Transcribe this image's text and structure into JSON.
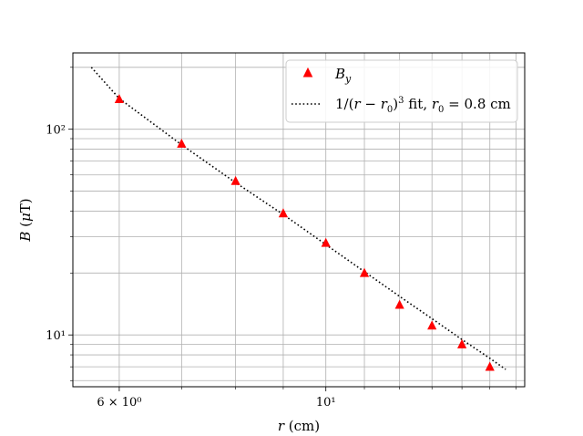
{
  "chart_data": {
    "type": "scatter",
    "title": "",
    "xlabel": "r (cm)",
    "ylabel": "B (μT)",
    "xscale": "log",
    "yscale": "log",
    "xlim": [
      5.35,
      16.35
    ],
    "ylim": [
      5.6,
      235
    ],
    "grid": "both-major-and-minor",
    "legend_position": "top-right",
    "x_major_ticks": [
      {
        "value": 6,
        "label": "6 × 10⁰"
      },
      {
        "value": 10,
        "label": "10¹"
      }
    ],
    "x_minor_ticks": [
      7,
      8,
      9,
      11,
      12,
      13,
      14,
      15,
      16
    ],
    "y_major_ticks": [
      {
        "value": 10,
        "label": "10¹"
      },
      {
        "value": 100,
        "label": "10²"
      }
    ],
    "y_minor_ticks": [
      6,
      7,
      8,
      9,
      20,
      30,
      40,
      50,
      60,
      70,
      80,
      90,
      200
    ],
    "series": [
      {
        "name": "B_y",
        "legend_label": "By",
        "kind": "markers",
        "marker": "triangle-up",
        "color": "#ff0000",
        "x": [
          6,
          7,
          8,
          9,
          10,
          11,
          12,
          13,
          14,
          15
        ],
        "y": [
          140,
          85,
          56,
          39,
          28,
          20,
          14,
          11.1,
          9.0,
          7.0
        ]
      },
      {
        "name": "fit",
        "legend_label": "1/(r − r₀)³ fit,  r₀ = 0.8 cm",
        "kind": "dotted-line",
        "color": "#000000",
        "x": [
          5.6,
          6,
          7,
          8,
          9,
          10,
          11,
          12,
          13,
          14,
          15,
          15.6
        ],
        "y": [
          200,
          141,
          84,
          55,
          38.5,
          27.5,
          20.3,
          15.4,
          12.0,
          9.5,
          7.7,
          6.8
        ]
      }
    ]
  }
}
